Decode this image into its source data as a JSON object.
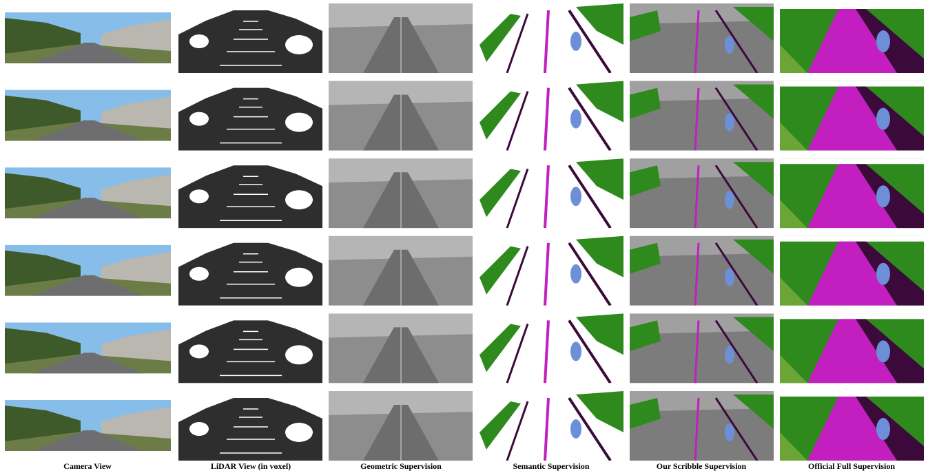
{
  "captions": [
    "Camera View",
    "LiDAR View (in voxel)",
    "Geometric Supervision",
    "Semantic Supervision",
    "Our Scribble Supervision",
    "Official Full Supervision"
  ]
}
